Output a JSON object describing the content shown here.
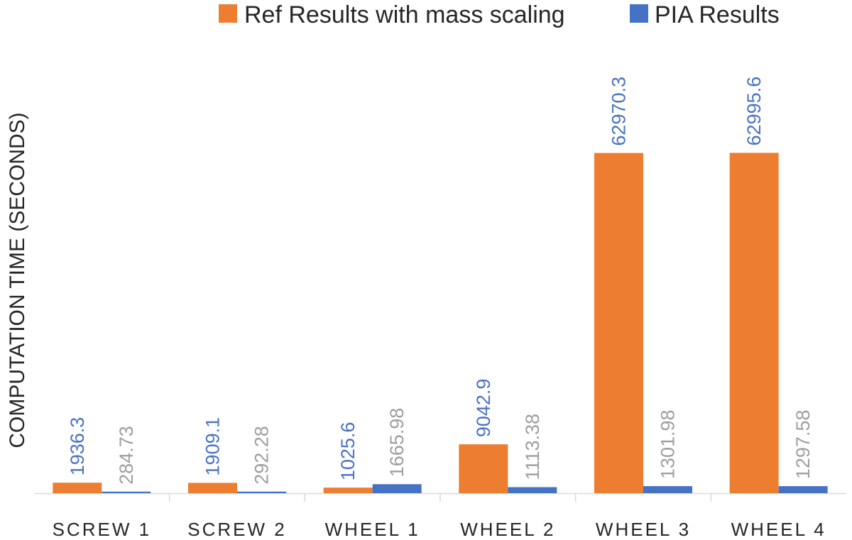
{
  "chart_data": {
    "type": "bar",
    "title": "",
    "xlabel": "",
    "ylabel": "COMPUTATION TIME (SECONDS)",
    "categories": [
      "SCREW 1",
      "SCREW 2",
      "WHEEL 1",
      "WHEEL 2",
      "WHEEL 3",
      "WHEEL 4"
    ],
    "series": [
      {
        "name": "Ref Results with mass scaling",
        "color": "#ed7d31",
        "values": [
          1936.3,
          1909.1,
          1025.6,
          9042.9,
          62970.3,
          62995.6
        ],
        "labels": [
          "1936.3",
          "1909.1",
          "1025.6",
          "9042.9",
          "62970.3",
          "62995.6"
        ]
      },
      {
        "name": "PIA Results",
        "color": "#4472c4",
        "values": [
          284.73,
          292.28,
          1665.98,
          1113.38,
          1301.98,
          1297.58
        ],
        "labels": [
          "284.73",
          "292.28",
          "1665.98",
          "1113.38",
          "1301.98",
          "1297.58"
        ]
      }
    ],
    "ylim": [
      0,
      75000
    ],
    "grid": false,
    "legend": "top",
    "data_label_colors": {
      "ref": "#4a72c4",
      "pia": "#9e9e9e"
    }
  }
}
